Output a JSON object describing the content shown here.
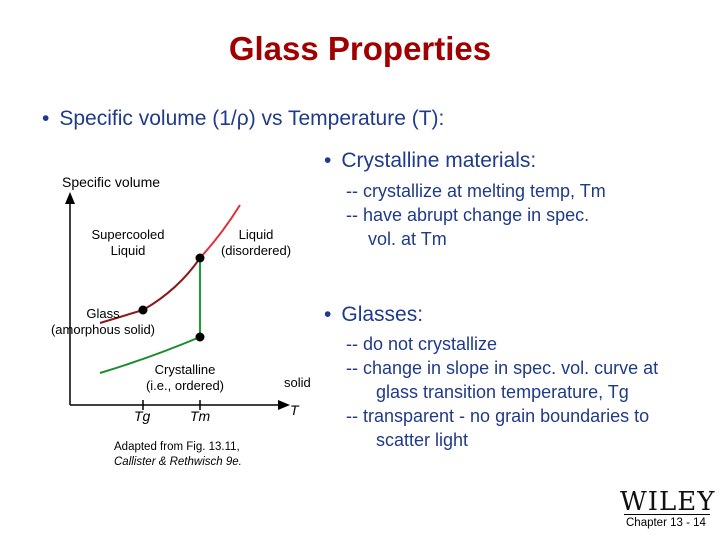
{
  "slide": {
    "title": "Glass Properties",
    "bullet_main": "Specific volume (1/ρ) vs Temperature (T):",
    "chapter": "Chapter 13 - 14",
    "publisher_logo_text": "WILEY"
  },
  "diagram": {
    "y_axis_label": "Specific volume",
    "x_axis_label": "T",
    "label_liquid_line1": "Liquid",
    "label_liquid_line2": "(disordered)",
    "label_supercooled_line1": "Supercooled",
    "label_supercooled_line2": "Liquid",
    "label_glass_line1": "Glass",
    "label_glass_line2": "(amorphous solid)",
    "label_crystalline_line1": "Crystalline",
    "label_crystalline_line2": "(i.e., ordered)",
    "label_solid": "solid",
    "tick_tg": "Tg",
    "tick_tm": "Tm",
    "caption_line1": "Adapted from Fig. 13.11,",
    "caption_line2": "Callister & Rethwisch 9e.",
    "colors": {
      "liquid_curve": "#e0303a",
      "glass_curve": "#8a1a1a",
      "crystalline_curve": "#1e8a2e",
      "step_line": "#18a030"
    }
  },
  "crystalline": {
    "heading": "Crystalline materials:",
    "line1": "-- crystallize at melting temp, Tm",
    "line2": "-- have abrupt change in spec.",
    "line3": "vol. at Tm"
  },
  "glasses": {
    "heading": "Glasses:",
    "line1": "-- do not crystallize",
    "line2": "-- change in slope in spec. vol. curve at",
    "line3": "glass transition temperature, Tg",
    "line4": "-- transparent  - no grain boundaries to",
    "line5": "scatter light"
  }
}
